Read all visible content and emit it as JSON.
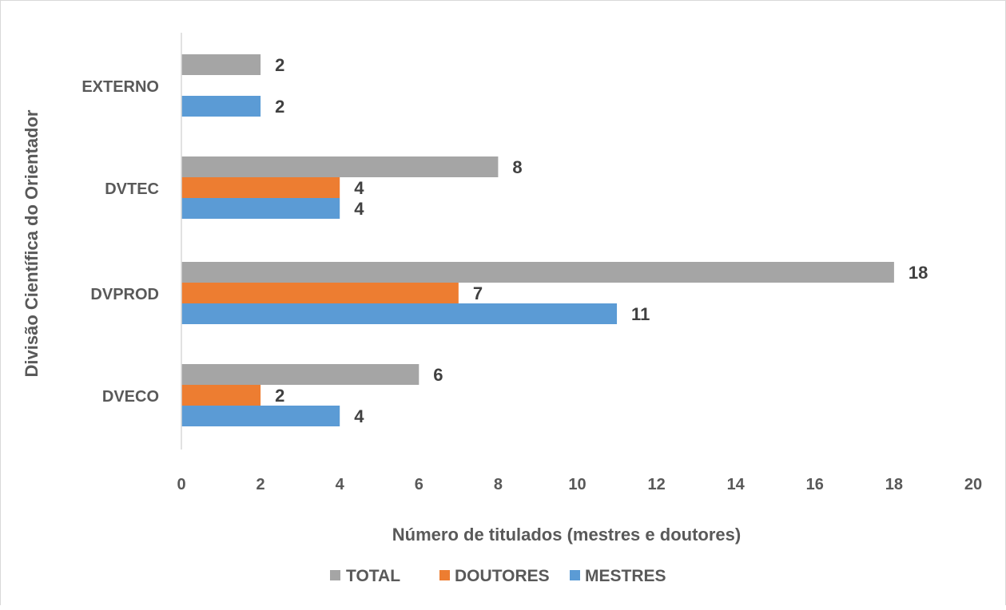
{
  "chart_data": {
    "type": "bar",
    "orientation": "horizontal",
    "categories": [
      "DVECO",
      "DVPROD",
      "DVTEC",
      "EXTERNO"
    ],
    "series": [
      {
        "name": "TOTAL",
        "color": "#a5a5a5",
        "values": [
          6,
          18,
          8,
          2
        ]
      },
      {
        "name": "DOUTORES",
        "color": "#ed7d31",
        "values": [
          2,
          7,
          4,
          null
        ]
      },
      {
        "name": "MESTRES",
        "color": "#5b9bd5",
        "values": [
          4,
          11,
          4,
          2
        ]
      }
    ],
    "xlabel": "Número de titulados (mestres e doutores)",
    "ylabel": "Divisão Científica do Orientador",
    "xlim": [
      0,
      20
    ],
    "xticks": [
      0,
      2,
      4,
      6,
      8,
      10,
      12,
      14,
      16,
      18,
      20
    ],
    "grid": false,
    "legend_position": "bottom",
    "data_labels": true
  }
}
